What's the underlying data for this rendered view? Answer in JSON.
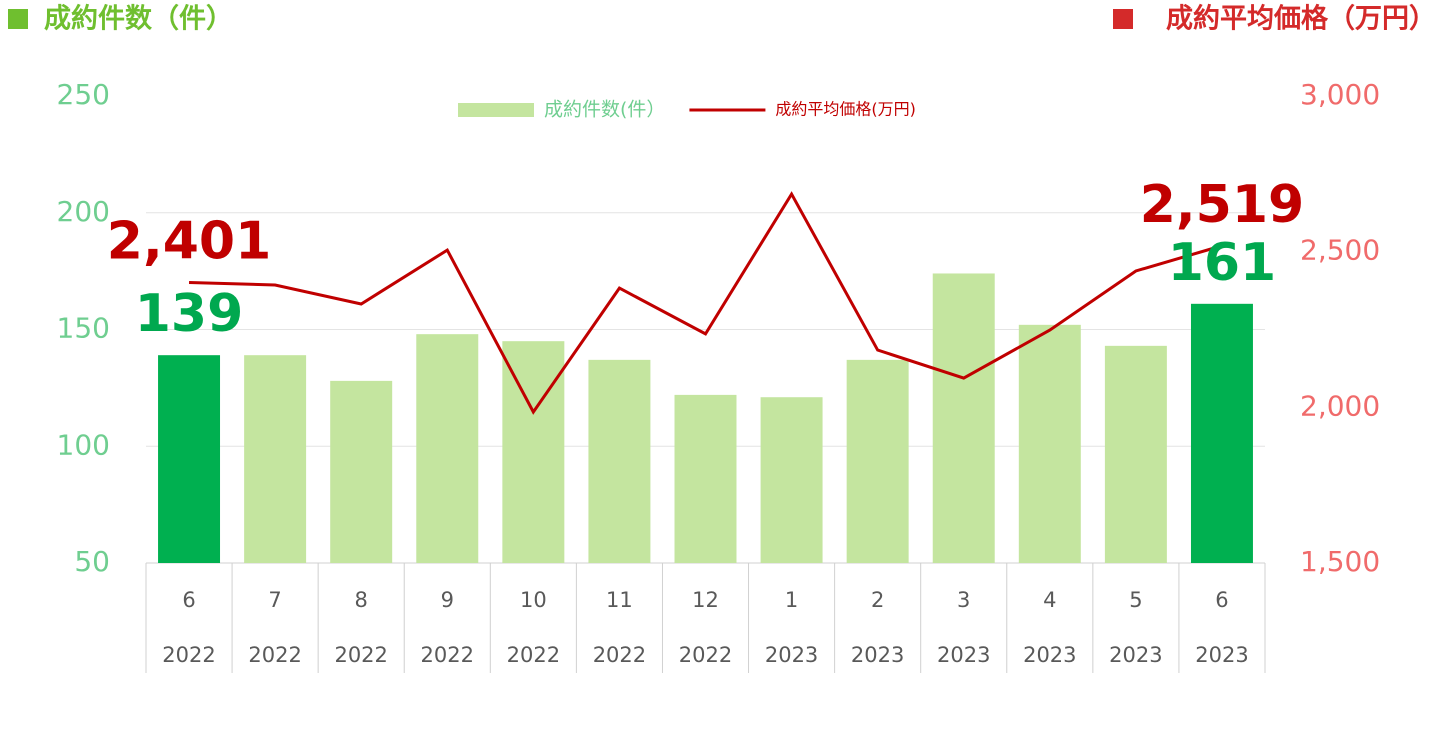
{
  "chart_data": {
    "type": "bar-line",
    "left_title": "成約件数（件）",
    "right_title": "成約平均価格（万円）",
    "categories": [
      "6",
      "7",
      "8",
      "9",
      "10",
      "11",
      "12",
      "1",
      "2",
      "3",
      "4",
      "5",
      "6"
    ],
    "years": [
      "2022",
      "2022",
      "2022",
      "2022",
      "2022",
      "2022",
      "2022",
      "2023",
      "2023",
      "2023",
      "2023",
      "2023",
      "2023"
    ],
    "series": [
      {
        "name": "成約件数(件）",
        "type": "bar",
        "color": "#c4e59f",
        "colors": [
          "#00b050",
          "#c4e59f",
          "#c4e59f",
          "#c4e59f",
          "#c4e59f",
          "#c4e59f",
          "#c4e59f",
          "#c4e59f",
          "#c4e59f",
          "#c4e59f",
          "#c4e59f",
          "#c4e59f",
          "#00b050"
        ],
        "values": [
          139,
          139,
          128,
          148,
          145,
          137,
          122,
          121,
          137,
          174,
          152,
          143,
          161
        ],
        "value_labels": [
          "139",
          null,
          null,
          null,
          null,
          null,
          null,
          null,
          null,
          null,
          null,
          null,
          "161"
        ],
        "label_color": "#00a84f"
      },
      {
        "name": "成約平均価格(万円)",
        "type": "line",
        "axis": "y2",
        "color": "#c00000",
        "values": [
          2401,
          2393,
          2332,
          2505,
          1985,
          2383,
          2236,
          2685,
          2184,
          2094,
          2248,
          2438,
          2519
        ],
        "value_labels": [
          "2,401",
          null,
          null,
          null,
          null,
          null,
          null,
          null,
          null,
          null,
          null,
          null,
          "2,519"
        ],
        "label_color": "#c00000"
      }
    ],
    "ylim": [
      50,
      250
    ],
    "yticks": [
      50,
      100,
      150,
      200,
      250
    ],
    "y2lim": [
      1500,
      3000
    ],
    "y2ticks": [
      {
        "value": 1500,
        "label": "1,500"
      },
      {
        "value": 2000,
        "label": "2,000"
      },
      {
        "value": 2500,
        "label": "2,500"
      },
      {
        "value": 3000,
        "label": "3,000"
      }
    ],
    "grid": true
  }
}
